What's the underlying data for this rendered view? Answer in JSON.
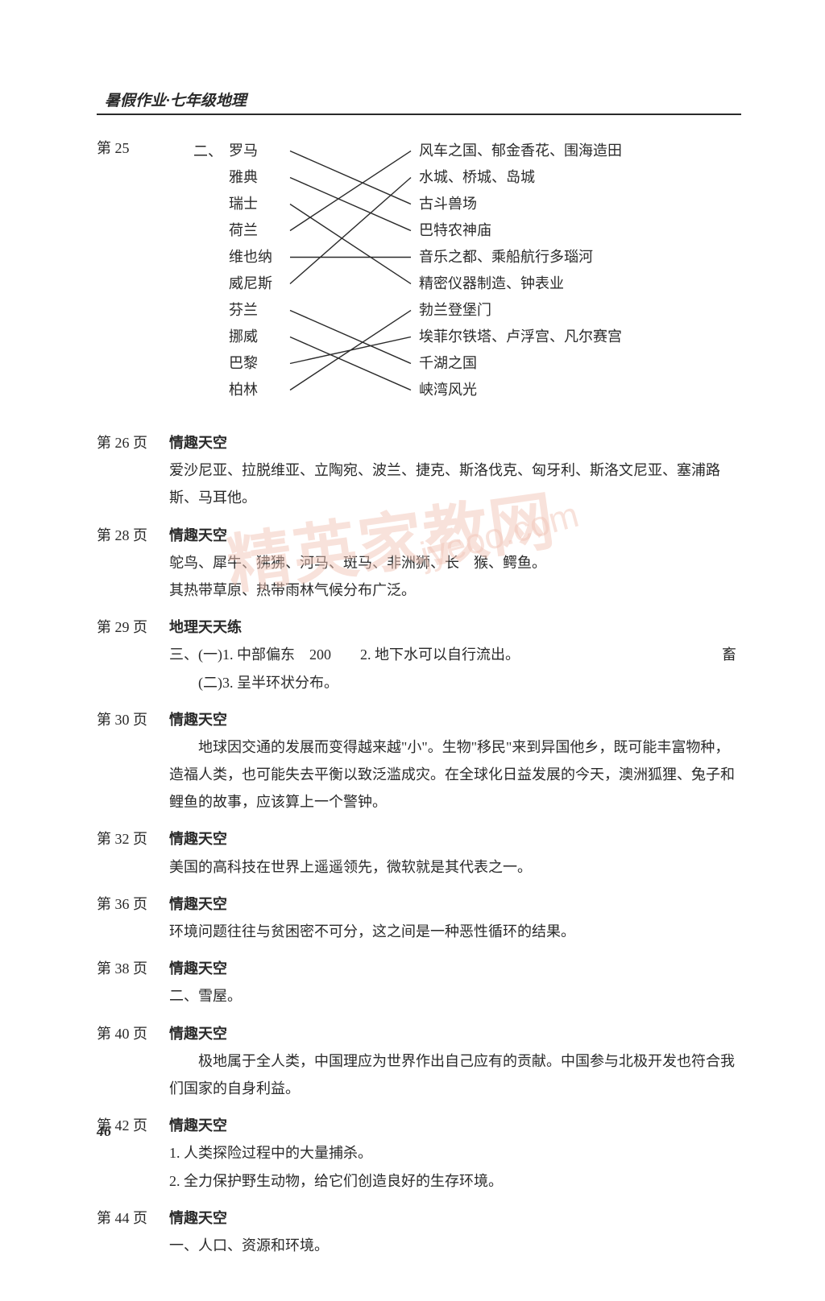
{
  "header": "暑假作业·七年级地理",
  "page25": {
    "ref": "第 25",
    "label": "二、",
    "leftItems": [
      "罗马",
      "雅典",
      "瑞士",
      "荷兰",
      "维也纳",
      "威尼斯",
      "芬兰",
      "挪威",
      "巴黎",
      "柏林"
    ],
    "rightItems": [
      "风车之国、郁金香花、围海造田",
      "水城、桥城、岛城",
      "古斗兽场",
      "巴特农神庙",
      "音乐之都、乘船航行多瑙河",
      "精密仪器制造、钟表业",
      "勃兰登堡门",
      "埃菲尔铁塔、卢浮宫、凡尔赛宫",
      "千湖之国",
      "峡湾风光"
    ],
    "connections": [
      [
        0,
        2
      ],
      [
        1,
        3
      ],
      [
        2,
        5
      ],
      [
        3,
        0
      ],
      [
        4,
        4
      ],
      [
        5,
        1
      ],
      [
        6,
        8
      ],
      [
        7,
        9
      ],
      [
        8,
        7
      ],
      [
        9,
        6
      ]
    ]
  },
  "page26": {
    "ref": "第 26 页",
    "title": "情趣天空",
    "text": "爱沙尼亚、拉脱维亚、立陶宛、波兰、捷克、斯洛伐克、匈牙利、斯洛文尼亚、塞浦路斯、马耳他。"
  },
  "page28": {
    "ref": "第 28 页",
    "title": "情趣天空",
    "line1": "鸵鸟、犀牛、狒狒、河马、斑马、非洲狮、长　猴、鳄鱼。",
    "line2": "其热带草原、热带雨林气候分布广泛。"
  },
  "page29": {
    "ref": "第 29 页",
    "title": "地理天天练",
    "line1": "三、(一)1. 中部偏东　200　　2. 地下水可以自行流出。",
    "line1b": "　畜",
    "line2": "　　(二)3. 呈半环状分布。"
  },
  "page30": {
    "ref": "第 30 页",
    "title": "情趣天空",
    "text": "　　地球因交通的发展而变得越来越\"小\"。生物\"移民\"来到异国他乡，既可能丰富物种，造福人类，也可能失去平衡以致泛滥成灾。在全球化日益发展的今天，澳洲狐狸、兔子和鲤鱼的故事，应该算上一个警钟。"
  },
  "page32": {
    "ref": "第 32 页",
    "title": "情趣天空",
    "text": "美国的高科技在世界上遥遥领先，微软就是其代表之一。"
  },
  "page36": {
    "ref": "第 36 页",
    "title": "情趣天空",
    "text": "环境问题往往与贫困密不可分，这之间是一种恶性循环的结果。"
  },
  "page38": {
    "ref": "第 38 页",
    "title": "情趣天空",
    "text": "二、雪屋。"
  },
  "page40": {
    "ref": "第 40 页",
    "title": "情趣天空",
    "text": "　　极地属于全人类，中国理应为世界作出自己应有的贡献。中国参与北极开发也符合我们国家的自身利益。"
  },
  "page42": {
    "ref": "第 42 页",
    "title": "情趣天空",
    "line1": "1. 人类探险过程中的大量捕杀。",
    "line2": "2. 全力保护野生动物，给它们创造良好的生存环境。"
  },
  "page44": {
    "ref": "第 44 页",
    "title": "情趣天空",
    "text": "一、人口、资源和环境。"
  },
  "watermark1": "精英家教网",
  "watermark2": "jyeoo.com",
  "footer": "46"
}
